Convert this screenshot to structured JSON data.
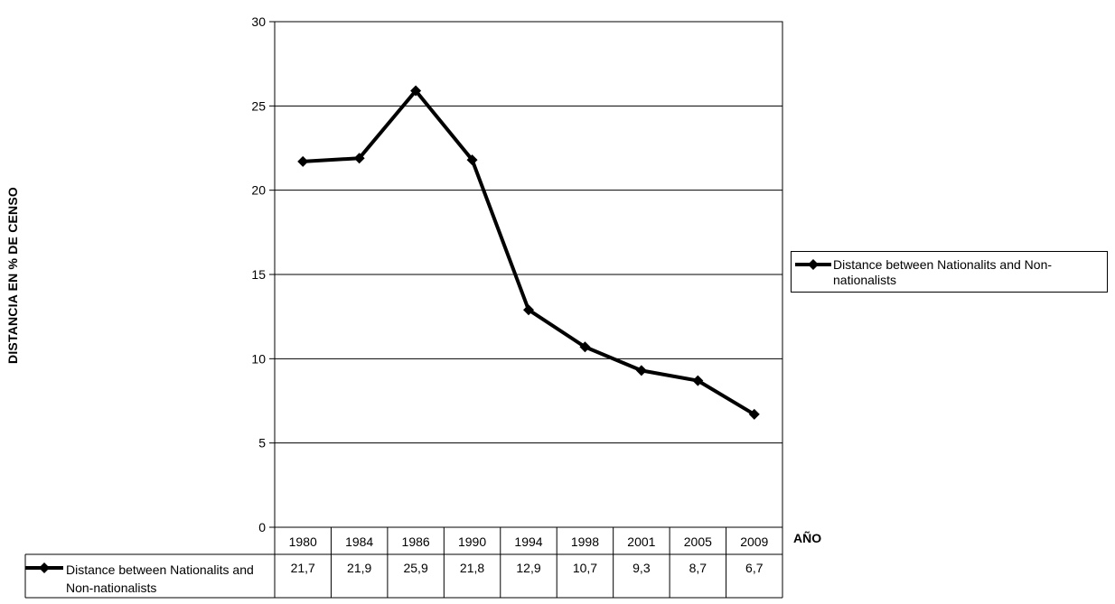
{
  "chart_data": {
    "type": "line",
    "title": "",
    "xlabel": "AÑO",
    "ylabel": "DISTANCIA EN % DE CENSO",
    "ylim": [
      0,
      30
    ],
    "yticks": [
      "0",
      "5",
      "10",
      "15",
      "20",
      "25",
      "30"
    ],
    "categories": [
      "1980",
      "1984",
      "1986",
      "1990",
      "1994",
      "1998",
      "2001",
      "2005",
      "2009"
    ],
    "series": [
      {
        "name": "Distance between Nationalits and Non-nationalists",
        "values": [
          21.7,
          21.9,
          25.9,
          21.8,
          12.9,
          10.7,
          9.3,
          8.7,
          6.7
        ],
        "color": "#000000",
        "marker": "diamond"
      }
    ],
    "grid": true,
    "legend_position": "right",
    "data_table": {
      "row_label": "Distance between Nationalits and Non-nationalists",
      "values": [
        "21,7",
        "21,9",
        "25,9",
        "21,8",
        "12,9",
        "10,7",
        "9,3",
        "8,7",
        "6,7"
      ]
    }
  }
}
